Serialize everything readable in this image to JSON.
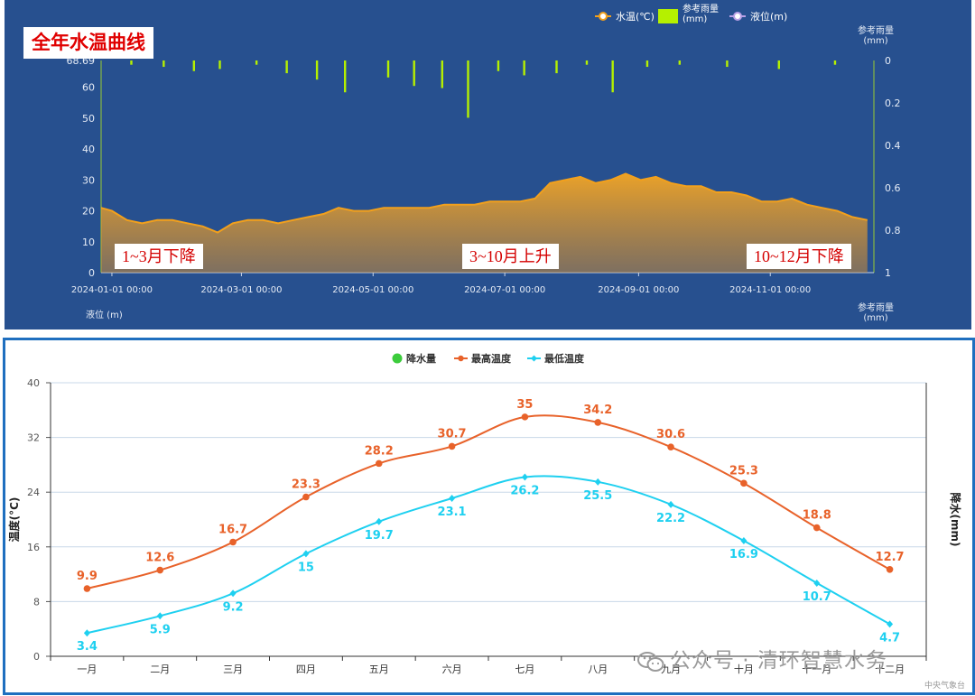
{
  "top_chart": {
    "title": "全年水温曲线",
    "legend": {
      "water_temp": "水温(℃)",
      "rain": "参考雨量\n(mm)",
      "level": "液位(m)"
    },
    "right_axis_title_top": "参考雨量\n(mm)",
    "right_axis_title_bottom": "参考雨量\n(mm)",
    "left_axis_title_bottom": "液位 (m)",
    "left_ticks": [
      "0",
      "10",
      "20",
      "30",
      "40",
      "50",
      "60",
      "68.69"
    ],
    "right_ticks": [
      "0",
      "0.2",
      "0.4",
      "0.6",
      "0.8",
      "1"
    ],
    "x_ticks": [
      "2024-01-01 00:00",
      "2024-03-01 00:00",
      "2024-05-01 00:00",
      "2024-07-01 00:00",
      "2024-09-01 00:00",
      "2024-11-01 00:00"
    ],
    "annotations": [
      "1~3月下降",
      "3~10月上升",
      "10~12月下降"
    ],
    "colors": {
      "bg": "#27508f",
      "temp": "#f2a01c",
      "rain": "#b5f000",
      "level": "#b9a0e6"
    }
  },
  "chart_data": [
    {
      "type": "area",
      "title": "全年水温曲线",
      "x_label": "",
      "y_label": "",
      "series": [
        {
          "name": "水温(℃)",
          "x": [
            "2023-12-27",
            "2024-01-01",
            "2024-01-08",
            "2024-01-15",
            "2024-01-22",
            "2024-01-29",
            "2024-02-05",
            "2024-02-12",
            "2024-02-19",
            "2024-02-26",
            "2024-03-04",
            "2024-03-11",
            "2024-03-18",
            "2024-03-25",
            "2024-04-01",
            "2024-04-08",
            "2024-04-15",
            "2024-04-22",
            "2024-04-29",
            "2024-05-06",
            "2024-05-13",
            "2024-05-20",
            "2024-05-27",
            "2024-06-03",
            "2024-06-10",
            "2024-06-17",
            "2024-06-24",
            "2024-07-01",
            "2024-07-08",
            "2024-07-15",
            "2024-07-22",
            "2024-07-29",
            "2024-08-05",
            "2024-08-12",
            "2024-08-19",
            "2024-08-26",
            "2024-09-02",
            "2024-09-09",
            "2024-09-16",
            "2024-09-23",
            "2024-09-30",
            "2024-10-07",
            "2024-10-14",
            "2024-10-21",
            "2024-10-28",
            "2024-11-04",
            "2024-11-11",
            "2024-11-18",
            "2024-11-25",
            "2024-12-02",
            "2024-12-09",
            "2024-12-16"
          ],
          "values": [
            21,
            20,
            17,
            16,
            17,
            17,
            16,
            15,
            13,
            16,
            17,
            17,
            16,
            17,
            18,
            19,
            21,
            20,
            20,
            21,
            21,
            21,
            21,
            22,
            22,
            22,
            23,
            23,
            23,
            24,
            29,
            30,
            31,
            29,
            30,
            32,
            30,
            31,
            29,
            28,
            28,
            26,
            26,
            25,
            23,
            23,
            24,
            22,
            21,
            20,
            18,
            17
          ]
        },
        {
          "name": "参考雨量(mm)",
          "axis": "right-inverted",
          "x": [
            "2024-01-10",
            "2024-01-25",
            "2024-02-08",
            "2024-02-20",
            "2024-03-08",
            "2024-03-22",
            "2024-04-05",
            "2024-04-18",
            "2024-05-08",
            "2024-05-20",
            "2024-06-02",
            "2024-06-14",
            "2024-06-28",
            "2024-07-10",
            "2024-07-25",
            "2024-08-08",
            "2024-08-20",
            "2024-09-05",
            "2024-09-20",
            "2024-10-12",
            "2024-11-05",
            "2024-12-01"
          ],
          "values": [
            0.02,
            0.03,
            0.05,
            0.04,
            0.02,
            0.06,
            0.09,
            0.15,
            0.08,
            0.12,
            0.13,
            0.27,
            0.05,
            0.07,
            0.06,
            0.02,
            0.15,
            0.03,
            0.02,
            0.03,
            0.04,
            0.02
          ]
        }
      ],
      "y_range_left": [
        0,
        68.69
      ],
      "y_range_right": [
        0,
        1
      ],
      "legend_position": "top-right"
    },
    {
      "type": "line",
      "title": "",
      "categories": [
        "一月",
        "二月",
        "三月",
        "四月",
        "五月",
        "六月",
        "七月",
        "八月",
        "九月",
        "十月",
        "十一月",
        "十二月"
      ],
      "series": [
        {
          "name": "最高温度",
          "values": [
            9.9,
            12.6,
            16.7,
            23.3,
            28.2,
            30.7,
            35,
            34.2,
            30.6,
            25.3,
            18.8,
            12.7
          ],
          "color": "#e8622a"
        },
        {
          "name": "最低温度",
          "values": [
            3.4,
            5.9,
            9.2,
            15,
            19.7,
            23.1,
            26.2,
            25.5,
            22.2,
            16.9,
            10.7,
            4.7
          ],
          "color": "#1ed0f0"
        }
      ],
      "legend_extra": {
        "name": "降水量",
        "color": "#3ccc3c"
      },
      "y_label": "温度(°C)",
      "y2_label": "降水(mm)",
      "y_ticks": [
        "0",
        "8",
        "16",
        "24",
        "32",
        "40"
      ],
      "ylim": [
        0,
        40
      ],
      "legend_position": "top",
      "grid": true
    }
  ],
  "watermark": "公众号 · 清环智慧水务",
  "source_note": "中央气象台"
}
